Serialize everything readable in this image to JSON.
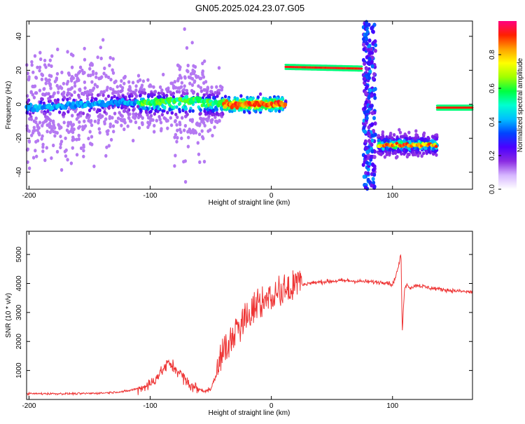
{
  "title": "GN05.2025.024.23.07.G05",
  "chart_data": [
    {
      "type": "heatmap",
      "xlabel": "Height of straight line (km)",
      "ylabel": "Frequency (Hz)",
      "xlim": [
        -202,
        166
      ],
      "ylim": [
        -50,
        49
      ],
      "xticks": [
        -200,
        -100,
        0,
        100
      ],
      "yticks": [
        -40,
        -20,
        0,
        20,
        40
      ],
      "colorbar": {
        "label": "Normalized spectral amplitude",
        "range": [
          0,
          1
        ],
        "ticks": [
          0.0,
          0.2,
          0.4,
          0.6,
          0.8
        ],
        "colors": [
          "#ffffff",
          "#d6b6ff",
          "#8a2be2",
          "#4b00ff",
          "#0044ff",
          "#00bfff",
          "#00ffd0",
          "#00ff40",
          "#a0ff00",
          "#ffff00",
          "#ffa000",
          "#ff2000",
          "#ff0080"
        ]
      },
      "segments": [
        {
          "x": [
            -202,
            12
          ],
          "freq": [
            -2,
            1,
            0,
            0,
            0
          ],
          "amplitude": "noisy, highest (red) near -35 to 5 km"
        },
        {
          "x": [
            12,
            75
          ],
          "freq": [
            22,
            21
          ],
          "amplitude": "strong, red"
        },
        {
          "x": [
            88,
            137
          ],
          "freq": [
            -24,
            -23
          ],
          "amplitude": "medium to strong"
        },
        {
          "x": [
            137,
            166
          ],
          "freq": [
            -2,
            -2
          ],
          "amplitude": "strong, red"
        }
      ]
    },
    {
      "type": "line",
      "xlabel": "Height of straight line (km)",
      "ylabel": "SNR (10 * v/v)",
      "xlim": [
        -202,
        166
      ],
      "ylim": [
        0,
        5800
      ],
      "xticks": [
        -200,
        -100,
        0,
        100
      ],
      "yticks": [
        1000,
        2000,
        3000,
        4000,
        5000
      ],
      "color": "#ee3333",
      "x": [
        -202,
        -180,
        -160,
        -140,
        -120,
        -110,
        -100,
        -95,
        -90,
        -85,
        -80,
        -75,
        -70,
        -65,
        -60,
        -55,
        -50,
        -45,
        -40,
        -35,
        -30,
        -25,
        -20,
        -15,
        -10,
        -5,
        0,
        5,
        10,
        15,
        20,
        25,
        30,
        40,
        50,
        60,
        70,
        80,
        90,
        95,
        100,
        103,
        105,
        107,
        108,
        110,
        112,
        115,
        120,
        130,
        140,
        150,
        166
      ],
      "values": [
        200,
        200,
        200,
        220,
        280,
        380,
        520,
        750,
        1000,
        1250,
        1100,
        900,
        600,
        450,
        350,
        300,
        350,
        900,
        1400,
        1800,
        2100,
        2400,
        2700,
        2950,
        3150,
        3300,
        3450,
        3550,
        3650,
        3750,
        3850,
        3950,
        4000,
        4050,
        4080,
        4100,
        4080,
        4060,
        4040,
        4050,
        3950,
        4300,
        4600,
        5000,
        2300,
        3900,
        3950,
        3850,
        3950,
        3850,
        3800,
        3750,
        3700
      ]
    }
  ]
}
